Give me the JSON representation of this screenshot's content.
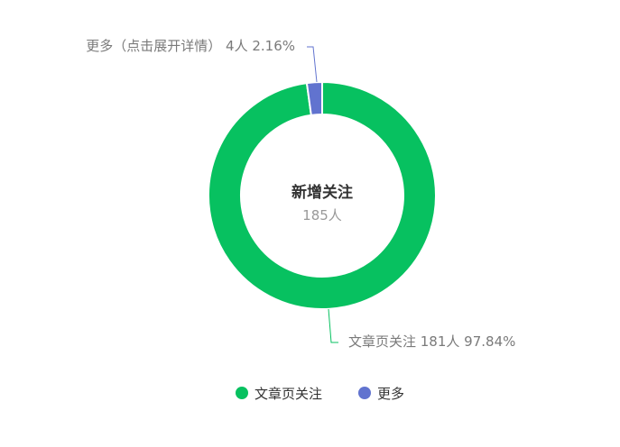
{
  "chart_data": {
    "type": "pie",
    "variant": "donut",
    "center_title": "新增关注",
    "center_subtitle": "185人",
    "series": [
      {
        "name": "文章页关注",
        "value": 181,
        "percent": "97.84%",
        "unit": "人",
        "color": "#07c160",
        "label": "文章页关注 181人 97.84%"
      },
      {
        "name": "更多",
        "value": 4,
        "percent": "2.16%",
        "unit": "人",
        "color": "#6173cf",
        "label": "更多（点击展开详情） 4人 2.16%"
      }
    ],
    "legend": {
      "position": "bottom",
      "items": [
        "文章页关注",
        "更多"
      ]
    }
  }
}
